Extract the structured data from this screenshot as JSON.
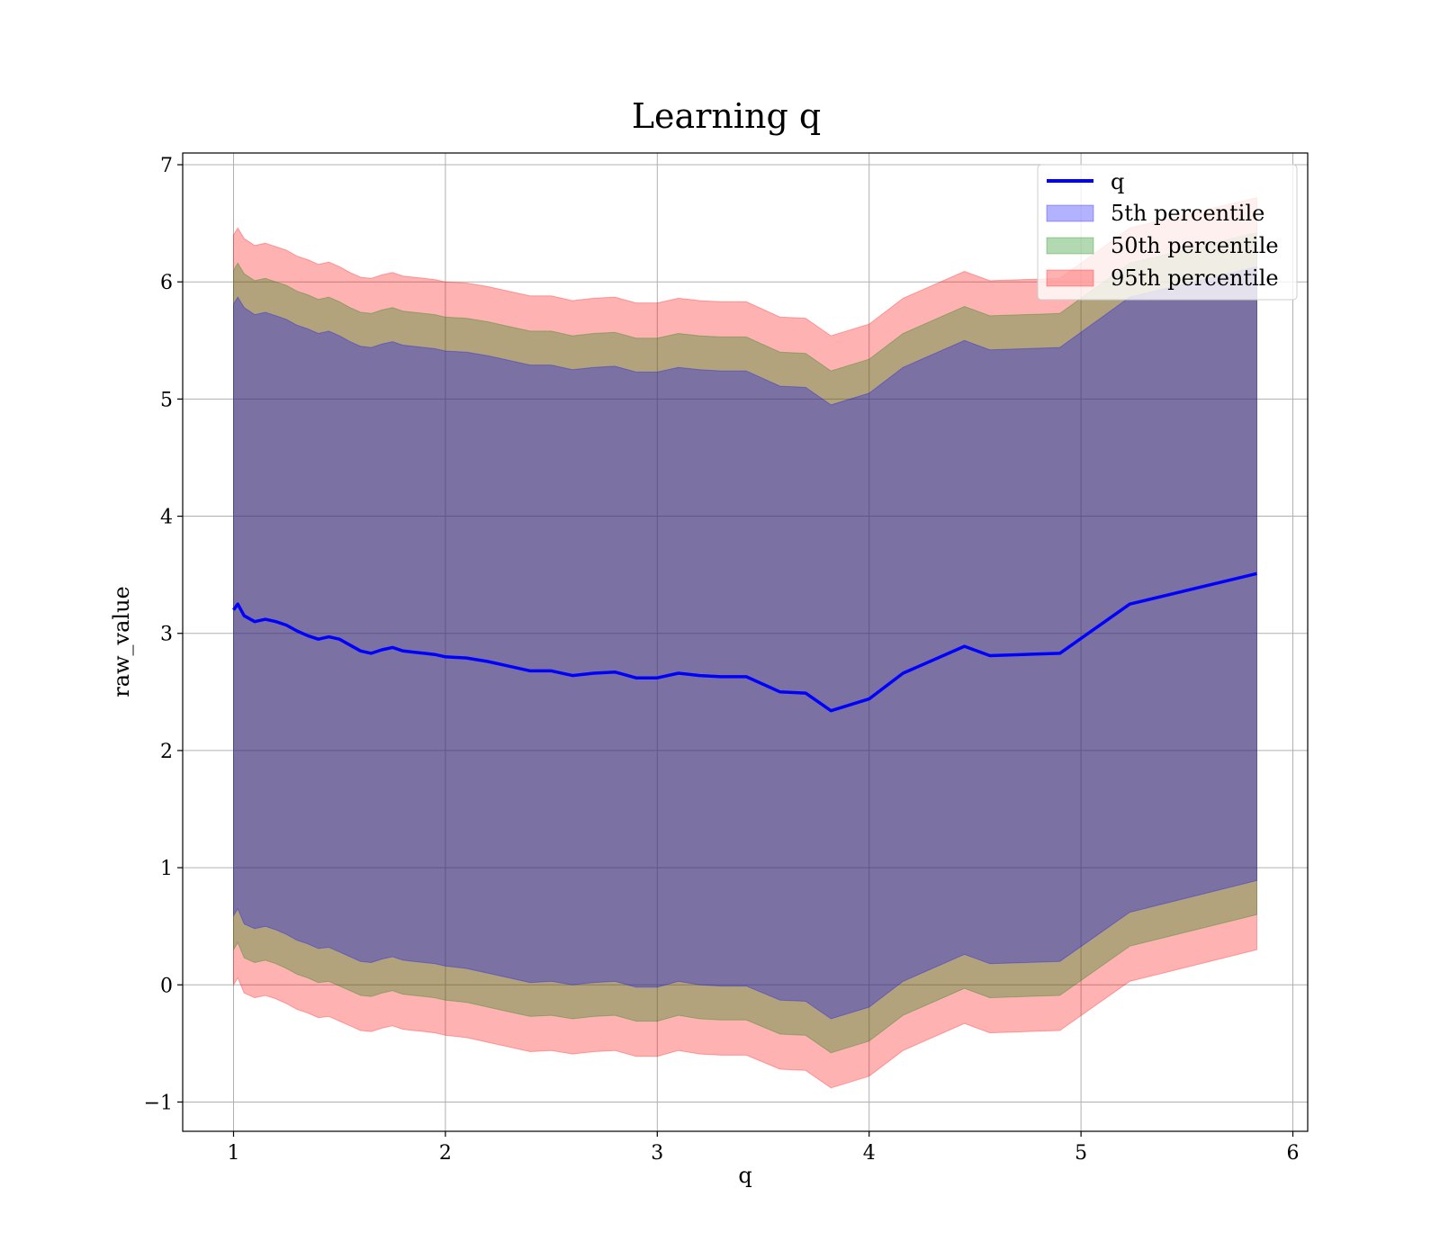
{
  "chart_data": {
    "type": "line",
    "title": "Learning q",
    "xlabel": "q",
    "ylabel": "raw_value",
    "xlim": [
      0.76,
      6.07
    ],
    "ylim": [
      -1.25,
      7.1
    ],
    "xticks": [
      1,
      2,
      3,
      4,
      5,
      6
    ],
    "yticks": [
      -1,
      0,
      1,
      2,
      3,
      4,
      5,
      6,
      7
    ],
    "grid": true,
    "legend_position": "top-right",
    "colors": {
      "line": "#0000ff",
      "band_5": "#0000ff",
      "band_50": "#008000",
      "band_95": "#ff0000"
    },
    "x": [
      1.0,
      1.02,
      1.05,
      1.1,
      1.15,
      1.2,
      1.25,
      1.3,
      1.35,
      1.4,
      1.45,
      1.5,
      1.55,
      1.6,
      1.65,
      1.7,
      1.75,
      1.8,
      1.85,
      1.9,
      1.95,
      2.0,
      2.1,
      2.2,
      2.3,
      2.4,
      2.5,
      2.6,
      2.7,
      2.8,
      2.9,
      3.0,
      3.1,
      3.2,
      3.3,
      3.42,
      3.58,
      3.7,
      3.82,
      4.0,
      4.16,
      4.45,
      4.57,
      4.9,
      5.23,
      5.83
    ],
    "series": [
      {
        "name": "q",
        "type": "line",
        "values": [
          3.2,
          3.25,
          3.15,
          3.1,
          3.12,
          3.1,
          3.07,
          3.02,
          2.98,
          2.95,
          2.97,
          2.95,
          2.9,
          2.85,
          2.83,
          2.86,
          2.88,
          2.85,
          2.84,
          2.83,
          2.82,
          2.8,
          2.79,
          2.76,
          2.72,
          2.68,
          2.68,
          2.64,
          2.66,
          2.67,
          2.62,
          2.62,
          2.66,
          2.64,
          2.63,
          2.63,
          2.5,
          2.49,
          2.34,
          2.44,
          2.66,
          2.89,
          2.81,
          2.83,
          3.25,
          3.51
        ]
      },
      {
        "name": "5th percentile",
        "type": "band",
        "lower": [
          0.59,
          0.65,
          0.52,
          0.48,
          0.5,
          0.47,
          0.43,
          0.38,
          0.35,
          0.31,
          0.32,
          0.28,
          0.24,
          0.2,
          0.19,
          0.22,
          0.24,
          0.21,
          0.2,
          0.19,
          0.18,
          0.16,
          0.14,
          0.1,
          0.06,
          0.02,
          0.03,
          0.0,
          0.02,
          0.03,
          -0.02,
          -0.02,
          0.03,
          0.0,
          -0.01,
          -0.01,
          -0.13,
          -0.14,
          -0.29,
          -0.19,
          0.03,
          0.26,
          0.18,
          0.2,
          0.62,
          0.89
        ],
        "upper": [
          5.81,
          5.87,
          5.78,
          5.72,
          5.74,
          5.71,
          5.68,
          5.63,
          5.6,
          5.56,
          5.58,
          5.54,
          5.49,
          5.45,
          5.44,
          5.47,
          5.49,
          5.46,
          5.45,
          5.44,
          5.43,
          5.41,
          5.4,
          5.37,
          5.33,
          5.29,
          5.29,
          5.25,
          5.27,
          5.28,
          5.23,
          5.23,
          5.27,
          5.25,
          5.24,
          5.24,
          5.11,
          5.1,
          4.95,
          5.05,
          5.27,
          5.5,
          5.42,
          5.44,
          5.87,
          6.13
        ]
      },
      {
        "name": "50th percentile",
        "type": "band",
        "lower": [
          0.3,
          0.36,
          0.23,
          0.19,
          0.21,
          0.18,
          0.14,
          0.09,
          0.06,
          0.02,
          0.03,
          -0.01,
          -0.05,
          -0.09,
          -0.1,
          -0.07,
          -0.05,
          -0.08,
          -0.09,
          -0.1,
          -0.11,
          -0.13,
          -0.15,
          -0.19,
          -0.23,
          -0.27,
          -0.26,
          -0.29,
          -0.27,
          -0.26,
          -0.31,
          -0.31,
          -0.26,
          -0.29,
          -0.3,
          -0.3,
          -0.42,
          -0.43,
          -0.58,
          -0.48,
          -0.26,
          -0.03,
          -0.11,
          -0.09,
          0.33,
          0.6
        ],
        "upper": [
          6.1,
          6.16,
          6.07,
          6.01,
          6.03,
          6.0,
          5.97,
          5.92,
          5.89,
          5.85,
          5.87,
          5.83,
          5.78,
          5.74,
          5.73,
          5.76,
          5.78,
          5.75,
          5.74,
          5.73,
          5.72,
          5.7,
          5.69,
          5.66,
          5.62,
          5.58,
          5.58,
          5.54,
          5.56,
          5.57,
          5.52,
          5.52,
          5.56,
          5.54,
          5.53,
          5.53,
          5.4,
          5.39,
          5.24,
          5.34,
          5.56,
          5.79,
          5.71,
          5.73,
          6.16,
          6.42
        ]
      },
      {
        "name": "95th percentile",
        "type": "band",
        "lower": [
          0.0,
          0.06,
          -0.07,
          -0.11,
          -0.09,
          -0.12,
          -0.16,
          -0.21,
          -0.24,
          -0.28,
          -0.27,
          -0.31,
          -0.35,
          -0.39,
          -0.4,
          -0.37,
          -0.35,
          -0.38,
          -0.39,
          -0.4,
          -0.41,
          -0.43,
          -0.45,
          -0.49,
          -0.53,
          -0.57,
          -0.56,
          -0.59,
          -0.57,
          -0.56,
          -0.61,
          -0.61,
          -0.56,
          -0.59,
          -0.6,
          -0.6,
          -0.72,
          -0.73,
          -0.88,
          -0.78,
          -0.56,
          -0.33,
          -0.41,
          -0.39,
          0.03,
          0.3
        ],
        "upper": [
          6.4,
          6.46,
          6.37,
          6.31,
          6.33,
          6.3,
          6.27,
          6.22,
          6.19,
          6.15,
          6.17,
          6.13,
          6.08,
          6.04,
          6.03,
          6.06,
          6.08,
          6.05,
          6.04,
          6.03,
          6.02,
          6.0,
          5.99,
          5.96,
          5.92,
          5.88,
          5.88,
          5.84,
          5.86,
          5.87,
          5.82,
          5.82,
          5.86,
          5.84,
          5.83,
          5.83,
          5.7,
          5.69,
          5.54,
          5.64,
          5.86,
          6.09,
          6.01,
          6.03,
          6.46,
          6.72
        ]
      }
    ]
  }
}
